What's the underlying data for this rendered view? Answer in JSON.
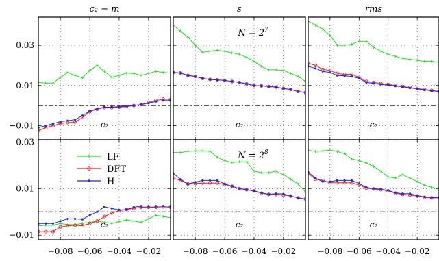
{
  "chart_data": {
    "type": "line",
    "column_titles": [
      "c₂ − m",
      "s",
      "rms"
    ],
    "row_annotations": [
      {
        "base": "N = 2",
        "exp": "7"
      },
      {
        "base": "N = 2",
        "exp": "8"
      }
    ],
    "panel_xlabel": "c₂",
    "xlim": [
      -0.095,
      -0.005
    ],
    "x_ticks": [
      -0.08,
      -0.06,
      -0.04,
      -0.02
    ],
    "x_tick_labels": [
      "−0.08",
      "−0.06",
      "−0.04",
      "−0.02"
    ],
    "y_ticks": [
      -0.01,
      0.01,
      0.03
    ],
    "y_tick_labels": [
      "−0.01",
      "0.01",
      "0.03"
    ],
    "rows": [
      {
        "ylim": [
          -0.017,
          0.044
        ],
        "y_reference": 0
      },
      {
        "ylim": [
          -0.012,
          0.031
        ],
        "y_reference": 0
      }
    ],
    "x": [
      -0.095,
      -0.09,
      -0.085,
      -0.08,
      -0.075,
      -0.07,
      -0.065,
      -0.06,
      -0.055,
      -0.05,
      -0.045,
      -0.04,
      -0.035,
      -0.03,
      -0.025,
      -0.02,
      -0.015,
      -0.01,
      -0.005
    ],
    "legend": {
      "location": "upper-left of the bottom-left panel",
      "entries": [
        {
          "name": "LF",
          "color": "#22dd22",
          "marker": "plus"
        },
        {
          "name": "DFT",
          "color": "#ee2222",
          "marker": "circle"
        },
        {
          "name": "H",
          "color": "#1a2ee0",
          "marker": "dot"
        }
      ]
    },
    "panels": [
      {
        "row": 0,
        "col": 0,
        "series": [
          {
            "name": "LF",
            "values": [
              0.0115,
              0.0112,
              0.0112,
              0.014,
              0.0165,
              0.015,
              0.0138,
              0.0175,
              0.02,
              0.017,
              0.014,
              0.015,
              0.0162,
              0.016,
              0.015,
              0.016,
              0.017,
              0.0165,
              0.0162
            ]
          },
          {
            "name": "DFT",
            "values": [
              -0.0125,
              -0.011,
              -0.01,
              -0.009,
              -0.0085,
              -0.0082,
              -0.006,
              -0.003,
              -0.0018,
              -0.001,
              -0.001,
              -0.0008,
              -0.0005,
              0.0,
              0.0005,
              0.0015,
              0.0025,
              0.0032,
              0.003
            ]
          },
          {
            "name": "H",
            "values": [
              -0.011,
              -0.01,
              -0.009,
              -0.008,
              -0.0075,
              -0.007,
              -0.005,
              -0.0028,
              -0.0015,
              -0.0008,
              -0.0008,
              -0.0005,
              -0.0003,
              0.0,
              0.0005,
              0.0012,
              0.002,
              0.0025,
              0.0025
            ]
          }
        ]
      },
      {
        "row": 0,
        "col": 1,
        "series": [
          {
            "name": "LF",
            "values": [
              0.04,
              0.037,
              0.034,
              0.03,
              0.0265,
              0.027,
              0.0275,
              0.027,
              0.0262,
              0.0255,
              0.024,
              0.022,
              0.0195,
              0.0178,
              0.0178,
              0.0175,
              0.016,
              0.0145,
              0.012
            ]
          },
          {
            "name": "DFT",
            "values": [
              0.0165,
              0.0162,
              0.015,
              0.0145,
              0.0135,
              0.013,
              0.0128,
              0.0125,
              0.012,
              0.0115,
              0.0108,
              0.01,
              0.0098,
              0.0095,
              0.0092,
              0.0085,
              0.008,
              0.007,
              0.0065
            ]
          },
          {
            "name": "H",
            "values": [
              0.0165,
              0.0162,
              0.015,
              0.0145,
              0.0135,
              0.013,
              0.0128,
              0.0125,
              0.012,
              0.0115,
              0.0108,
              0.01,
              0.0098,
              0.0095,
              0.0092,
              0.0085,
              0.008,
              0.007,
              0.0065
            ]
          }
        ]
      },
      {
        "row": 0,
        "col": 2,
        "series": [
          {
            "name": "LF",
            "values": [
              0.042,
              0.04,
              0.038,
              0.035,
              0.03,
              0.03,
              0.0305,
              0.032,
              0.032,
              0.029,
              0.027,
              0.0255,
              0.0245,
              0.0235,
              0.023,
              0.0225,
              0.022,
              0.022,
              0.0215
            ]
          },
          {
            "name": "DFT",
            "values": [
              0.021,
              0.02,
              0.018,
              0.0175,
              0.016,
              0.0155,
              0.0155,
              0.014,
              0.012,
              0.0115,
              0.011,
              0.0105,
              0.01,
              0.0095,
              0.009,
              0.0085,
              0.008,
              0.0075,
              0.007
            ]
          },
          {
            "name": "H",
            "values": [
              0.0195,
              0.0185,
              0.017,
              0.0165,
              0.015,
              0.0148,
              0.0145,
              0.0135,
              0.0115,
              0.011,
              0.0105,
              0.0102,
              0.0098,
              0.0093,
              0.0088,
              0.0083,
              0.0078,
              0.0073,
              0.007
            ]
          }
        ]
      },
      {
        "row": 1,
        "col": 0,
        "series": [
          {
            "name": "LF",
            "values": [
              -0.006,
              -0.0058,
              -0.0058,
              -0.005,
              -0.0055,
              -0.0055,
              -0.005,
              -0.0045,
              -0.004,
              -0.0045,
              -0.005,
              -0.0042,
              -0.0035,
              -0.004,
              -0.0045,
              -0.003,
              -0.0015,
              -0.002,
              -0.0025
            ]
          },
          {
            "name": "DFT",
            "values": [
              -0.0085,
              -0.0085,
              -0.0085,
              -0.0065,
              -0.006,
              -0.0058,
              -0.006,
              -0.005,
              -0.004,
              -0.002,
              -0.0005,
              0.0005,
              0.001,
              0.0015,
              0.002,
              0.002,
              0.002,
              0.0022,
              0.002
            ]
          },
          {
            "name": "H",
            "values": [
              -0.005,
              -0.005,
              -0.005,
              -0.004,
              -0.003,
              -0.003,
              -0.0032,
              -0.0015,
              0.0,
              0.0022,
              0.0015,
              0.0008,
              0.001,
              0.002,
              0.0025,
              0.0025,
              0.0025,
              0.0025,
              0.0025
            ]
          }
        ]
      },
      {
        "row": 1,
        "col": 1,
        "series": [
          {
            "name": "LF",
            "values": [
              0.0255,
              0.0255,
              0.026,
              0.0262,
              0.0262,
              0.026,
              0.0235,
              0.022,
              0.0212,
              0.0215,
              0.0215,
              0.0175,
              0.0168,
              0.0168,
              0.0175,
              0.016,
              0.014,
              0.012,
              0.0085
            ]
          },
          {
            "name": "DFT",
            "values": [
              0.0145,
              0.0135,
              0.012,
              0.0122,
              0.0124,
              0.0124,
              0.0124,
              0.0118,
              0.011,
              0.01,
              0.0095,
              0.009,
              0.008,
              0.0075,
              0.0075,
              0.0072,
              0.0068,
              0.006,
              0.0055
            ]
          },
          {
            "name": "H",
            "values": [
              0.0165,
              0.014,
              0.012,
              0.0128,
              0.0135,
              0.0135,
              0.0135,
              0.012,
              0.011,
              0.01,
              0.0095,
              0.009,
              0.0082,
              0.0075,
              0.0078,
              0.0077,
              0.0068,
              0.006,
              0.0055
            ]
          }
        ]
      },
      {
        "row": 1,
        "col": 2,
        "series": [
          {
            "name": "LF",
            "values": [
              0.0265,
              0.026,
              0.0262,
              0.0265,
              0.026,
              0.025,
              0.0228,
              0.022,
              0.021,
              0.0195,
              0.0175,
              0.015,
              0.0145,
              0.016,
              0.0145,
              0.013,
              0.0115,
              0.0105,
              0.01
            ]
          },
          {
            "name": "DFT",
            "values": [
              0.0165,
              0.014,
              0.0135,
              0.0125,
              0.0125,
              0.0125,
              0.0125,
              0.0115,
              0.0102,
              0.0098,
              0.0095,
              0.009,
              0.008,
              0.0075,
              0.0072,
              0.0068,
              0.0062,
              0.006,
              0.006
            ]
          },
          {
            "name": "H",
            "values": [
              0.017,
              0.0145,
              0.013,
              0.013,
              0.0135,
              0.0135,
              0.0135,
              0.0122,
              0.0105,
              0.01,
              0.0097,
              0.0092,
              0.0082,
              0.0078,
              0.0078,
              0.007,
              0.0064,
              0.0062,
              0.0062
            ]
          }
        ]
      }
    ]
  }
}
